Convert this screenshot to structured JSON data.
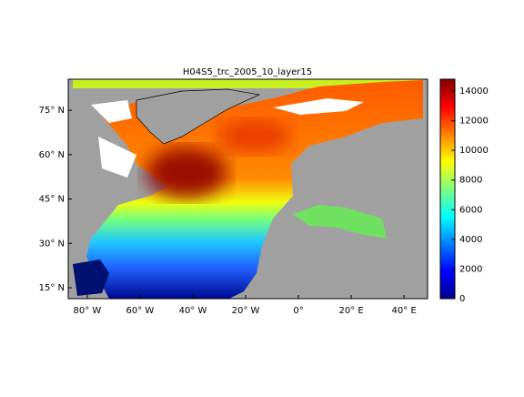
{
  "title": "H04S5_trc_2005_10_layer15",
  "axes": {
    "xlim": [
      -87.2,
      48.9
    ],
    "ylim": [
      11.3,
      85.5
    ],
    "xticks": [
      {
        "value": -80,
        "label": "80° W"
      },
      {
        "value": -60,
        "label": "60° W"
      },
      {
        "value": -40,
        "label": "40° W"
      },
      {
        "value": -20,
        "label": "20° W"
      },
      {
        "value": 0,
        "label": "0°"
      },
      {
        "value": 20,
        "label": "20° E"
      },
      {
        "value": 40,
        "label": "40° E"
      }
    ],
    "yticks": [
      {
        "value": 15,
        "label": "15° N"
      },
      {
        "value": 30,
        "label": "30° N"
      },
      {
        "value": 45,
        "label": "45° N"
      },
      {
        "value": 60,
        "label": "60° N"
      },
      {
        "value": 75,
        "label": "75° N"
      }
    ]
  },
  "colorbar": {
    "lim": [
      0,
      14800
    ],
    "ticks": [
      0,
      2000,
      4000,
      6000,
      8000,
      10000,
      12000,
      14000
    ]
  }
}
